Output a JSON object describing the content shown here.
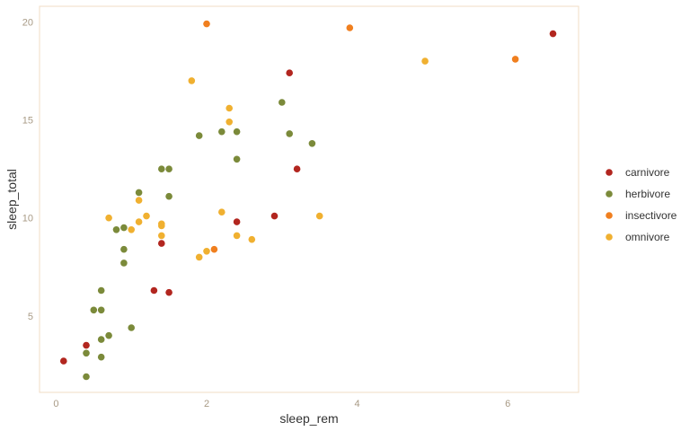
{
  "chart_data": {
    "type": "scatter",
    "xlabel": "sleep_rem",
    "ylabel": "sleep_total",
    "xlim": [
      -0.22,
      6.94
    ],
    "ylim": [
      1.1,
      20.8
    ],
    "x_ticks": [
      0,
      2,
      4,
      6
    ],
    "y_ticks": [
      5,
      10,
      15,
      20
    ],
    "grid": false,
    "legend_position": "right",
    "series": [
      {
        "name": "carnivore",
        "color": "#b2261f",
        "points": [
          [
            0.1,
            2.7
          ],
          [
            0.4,
            3.5
          ],
          [
            1.3,
            6.3
          ],
          [
            1.5,
            6.2
          ],
          [
            1.4,
            8.7
          ],
          [
            2.4,
            9.8
          ],
          [
            2.9,
            10.1
          ],
          [
            3.2,
            12.5
          ],
          [
            3.1,
            17.4
          ],
          [
            6.6,
            19.4
          ]
        ]
      },
      {
        "name": "herbivore",
        "color": "#7b8a3a",
        "points": [
          [
            0.4,
            1.9
          ],
          [
            0.4,
            3.1
          ],
          [
            0.6,
            2.9
          ],
          [
            0.6,
            3.8
          ],
          [
            0.7,
            4.0
          ],
          [
            1.0,
            4.4
          ],
          [
            0.5,
            5.3
          ],
          [
            0.6,
            5.3
          ],
          [
            0.6,
            6.3
          ],
          [
            0.9,
            7.7
          ],
          [
            0.9,
            8.4
          ],
          [
            0.8,
            9.4
          ],
          [
            0.9,
            9.5
          ],
          [
            1.1,
            11.3
          ],
          [
            1.4,
            12.5
          ],
          [
            1.5,
            12.5
          ],
          [
            1.5,
            11.1
          ],
          [
            1.9,
            14.2
          ],
          [
            2.2,
            14.4
          ],
          [
            2.4,
            14.4
          ],
          [
            2.4,
            13.0
          ],
          [
            3.1,
            14.3
          ],
          [
            3.0,
            15.9
          ],
          [
            3.4,
            13.8
          ]
        ]
      },
      {
        "name": "insectivore",
        "color": "#f07f1f",
        "points": [
          [
            2.0,
            19.9
          ],
          [
            3.9,
            19.7
          ],
          [
            6.1,
            18.1
          ],
          [
            2.1,
            8.4
          ]
        ]
      },
      {
        "name": "omnivore",
        "color": "#f0b030",
        "points": [
          [
            0.7,
            10.0
          ],
          [
            1.0,
            9.4
          ],
          [
            1.1,
            9.8
          ],
          [
            1.1,
            10.9
          ],
          [
            1.2,
            10.1
          ],
          [
            1.4,
            9.7
          ],
          [
            1.4,
            9.6
          ],
          [
            1.4,
            9.1
          ],
          [
            1.8,
            17.0
          ],
          [
            1.9,
            8.0
          ],
          [
            2.0,
            8.3
          ],
          [
            2.2,
            10.3
          ],
          [
            2.3,
            14.9
          ],
          [
            2.3,
            15.6
          ],
          [
            2.4,
            9.1
          ],
          [
            2.6,
            8.9
          ],
          [
            3.5,
            10.1
          ],
          [
            4.9,
            18.0
          ]
        ]
      }
    ]
  }
}
